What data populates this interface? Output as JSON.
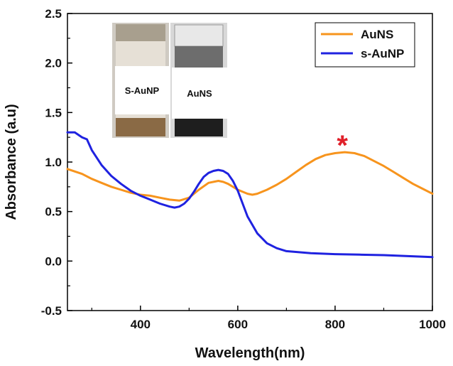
{
  "chart_data": {
    "type": "line",
    "title": "",
    "xlabel": "Wavelength(nm)",
    "ylabel": "Absorbance (a.u)",
    "xlim": [
      250,
      1000
    ],
    "ylim": [
      -0.5,
      2.5
    ],
    "xticks": [
      400,
      600,
      800,
      1000
    ],
    "yticks": [
      -0.5,
      0.0,
      0.5,
      1.0,
      1.5,
      2.0,
      2.5
    ],
    "ytick_labels": [
      "-0.5",
      "0.0",
      "0.5",
      "1.0",
      "1.5",
      "2.0",
      "2.5"
    ],
    "xtick_labels": [
      "400",
      "600",
      "800",
      "1000"
    ],
    "grid": false,
    "legend_position": "top-right",
    "series": [
      {
        "name": "AuNS",
        "color": "#F7941D",
        "x": [
          250,
          280,
          300,
          320,
          340,
          360,
          380,
          400,
          420,
          440,
          460,
          480,
          500,
          520,
          540,
          560,
          570,
          580,
          600,
          620,
          630,
          640,
          660,
          680,
          700,
          720,
          740,
          760,
          780,
          800,
          820,
          840,
          860,
          880,
          900,
          920,
          940,
          960,
          980,
          1000
        ],
        "y": [
          0.93,
          0.88,
          0.83,
          0.79,
          0.75,
          0.72,
          0.69,
          0.67,
          0.66,
          0.64,
          0.62,
          0.61,
          0.64,
          0.72,
          0.79,
          0.81,
          0.8,
          0.78,
          0.72,
          0.68,
          0.67,
          0.68,
          0.72,
          0.77,
          0.83,
          0.9,
          0.97,
          1.03,
          1.07,
          1.09,
          1.1,
          1.09,
          1.06,
          1.01,
          0.96,
          0.9,
          0.84,
          0.78,
          0.73,
          0.68
        ]
      },
      {
        "name": "s-AuNP",
        "color": "#1F22E0",
        "x": [
          250,
          265,
          280,
          290,
          300,
          320,
          340,
          360,
          380,
          400,
          420,
          440,
          460,
          470,
          480,
          490,
          500,
          510,
          520,
          530,
          540,
          550,
          560,
          570,
          580,
          590,
          600,
          620,
          640,
          660,
          680,
          700,
          750,
          800,
          850,
          900,
          950,
          1000
        ],
        "y": [
          1.3,
          1.3,
          1.25,
          1.23,
          1.12,
          0.97,
          0.86,
          0.78,
          0.71,
          0.66,
          0.62,
          0.58,
          0.55,
          0.54,
          0.55,
          0.58,
          0.63,
          0.7,
          0.78,
          0.85,
          0.89,
          0.91,
          0.92,
          0.91,
          0.88,
          0.81,
          0.71,
          0.45,
          0.28,
          0.18,
          0.13,
          0.1,
          0.08,
          0.07,
          0.065,
          0.06,
          0.05,
          0.04
        ]
      }
    ],
    "annotations": [
      {
        "text": "*",
        "x": 815,
        "y": 1.2,
        "color": "#E0202A"
      }
    ],
    "inset": {
      "description_labels": [
        "S-AuNP",
        "AuNS"
      ]
    }
  }
}
